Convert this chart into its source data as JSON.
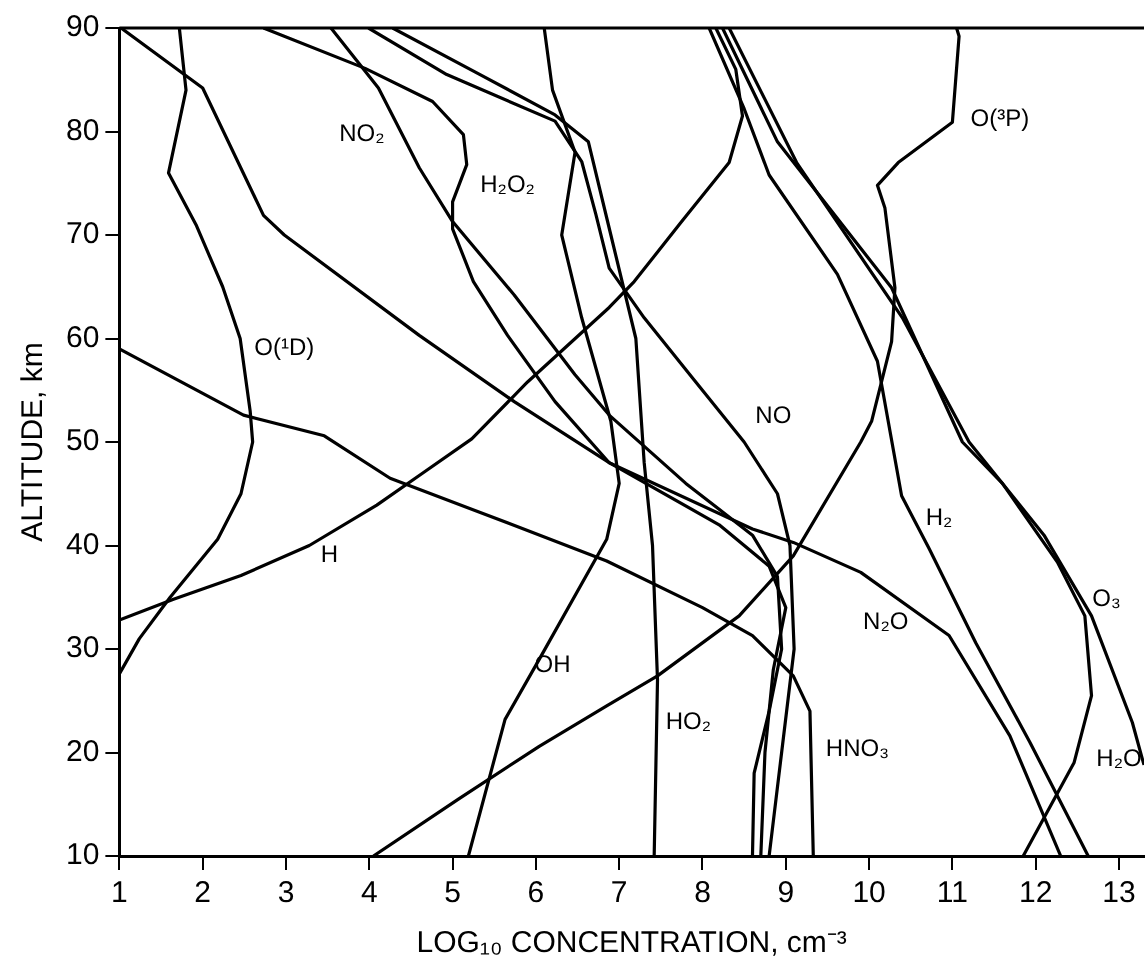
{
  "chart_data": {
    "type": "line",
    "xlabel": "LOG₁₀ CONCENTRATION, cm⁻³",
    "ylabel": "ALTITUDE, km",
    "xlim": [
      1,
      13.3
    ],
    "ylim": [
      10,
      90
    ],
    "xticks": [
      1,
      2,
      3,
      4,
      5,
      6,
      7,
      8,
      9,
      10,
      11,
      12,
      13
    ],
    "yticks": [
      10,
      20,
      30,
      40,
      50,
      60,
      70,
      80,
      90
    ],
    "grid": false,
    "legend": false,
    "marker": "none",
    "line_style": "solid",
    "series": [
      {
        "name": "O(¹D)",
        "color": "#000000",
        "x": [
          1,
          1.24,
          1.61,
          2.18,
          2.46,
          2.6,
          2.57,
          2.45,
          2.24,
          1.92,
          1.59,
          1.8,
          1.72
        ],
        "values": [
          27.6,
          31,
          35,
          40.6,
          45,
          50,
          53,
          60,
          65,
          71,
          76,
          84,
          90
        ]
      },
      {
        "name": "H",
        "color": "#000000",
        "x": [
          1,
          1.65,
          2.46,
          3.28,
          4.09,
          4.66,
          5.23,
          5.9,
          6.88,
          7.18,
          7.75,
          8.32,
          8.48,
          8.4,
          8.16
        ],
        "values": [
          32.8,
          34.8,
          37.1,
          40,
          43.9,
          47.1,
          50.3,
          55.8,
          63,
          65.5,
          71.3,
          77,
          81.5,
          86,
          90
        ]
      },
      {
        "name": "O(³P)",
        "color": "#000000",
        "x": [
          4.05,
          5.07,
          6.04,
          6.85,
          7.46,
          8.44,
          9.09,
          9.9,
          10.03,
          10.27,
          10.31,
          10.19,
          10.1,
          10.35,
          11,
          11.08,
          11.05
        ],
        "values": [
          10,
          15.5,
          20.6,
          24.5,
          27.4,
          33.2,
          39,
          50,
          52,
          59.7,
          64.9,
          72.6,
          74.8,
          77,
          80.9,
          89.2,
          90
        ]
      },
      {
        "name": "OH",
        "color": "#000000",
        "x": [
          5.19,
          5.63,
          6.04,
          6.85,
          7,
          6.9,
          6.55,
          6.31,
          6.47,
          6.2,
          6.1
        ],
        "values": [
          10,
          23.2,
          29,
          40.6,
          46,
          52,
          62,
          70,
          78,
          84,
          90
        ]
      },
      {
        "name": "N₂O",
        "color": "#000000",
        "x": [
          1.02,
          2,
          2.73,
          2.98,
          4.6,
          5.74,
          6.88,
          8.6,
          9.09,
          9.9,
          10.96,
          11.69,
          12.3
        ],
        "values": [
          90,
          84.2,
          71.9,
          70,
          60.3,
          53.9,
          48,
          41.6,
          40.3,
          37.4,
          31.3,
          21.6,
          10
        ]
      },
      {
        "name": "HNO₃",
        "color": "#000000",
        "x": [
          1,
          2.49,
          3.46,
          4.25,
          5.72,
          6.85,
          8,
          8.6,
          9.09,
          9.29,
          9.33
        ],
        "values": [
          59,
          52.6,
          50.6,
          46.5,
          42,
          38.5,
          34,
          31.3,
          27.4,
          24,
          10
        ]
      },
      {
        "name": "NO₂",
        "color": "#000000",
        "x": [
          3.54,
          4.11,
          4.6,
          5,
          5.74,
          6.47,
          6.88,
          7.8,
          8.6,
          8.9,
          8.95,
          8.8,
          8.62,
          8.6
        ],
        "values": [
          90,
          84.2,
          76.5,
          71.3,
          64.2,
          56.5,
          52.6,
          46,
          41,
          37,
          30,
          24,
          18,
          10
        ]
      },
      {
        "name": "H₂O₂",
        "color": "#000000",
        "x": [
          2.73,
          3.95,
          4.76,
          5.13,
          5.17,
          5,
          5,
          5.25,
          5.66,
          6.23,
          6.88,
          8.2,
          8.8,
          9,
          8.85,
          8.75,
          8.7
        ],
        "values": [
          90,
          86.1,
          82.9,
          79.7,
          76.8,
          73.2,
          70.6,
          65.5,
          60.3,
          53.9,
          48,
          42,
          38,
          34,
          28,
          20,
          10
        ]
      },
      {
        "name": "NO",
        "color": "#000000",
        "x": [
          3.99,
          4.93,
          6.23,
          6.55,
          6.72,
          6.88,
          7.3,
          7.9,
          8.5,
          8.9,
          9.05,
          9.1,
          8.95,
          8.8
        ],
        "values": [
          90,
          85.5,
          81,
          77.1,
          72,
          66.8,
          62,
          56,
          50,
          45,
          40,
          30,
          20,
          10
        ]
      },
      {
        "name": "HO₂",
        "color": "#000000",
        "x": [
          4.28,
          5.33,
          6.23,
          6.63,
          6.9,
          7.2,
          7.3,
          7.4,
          7.46,
          7.42
        ],
        "values": [
          90,
          85.5,
          81.6,
          79,
          70,
          60,
          48,
          40,
          27,
          10
        ]
      },
      {
        "name": "H₂",
        "color": "#000000",
        "x": [
          8.08,
          8.5,
          8.8,
          9.62,
          10.1,
          10.39,
          10.72,
          11.28,
          11.93,
          12.63
        ],
        "values": [
          90,
          82.2,
          75.8,
          66.2,
          57.8,
          44.8,
          39.7,
          30.6,
          21,
          10
        ]
      },
      {
        "name": "O₃",
        "color": "#000000",
        "x": [
          8.24,
          8.9,
          10.27,
          11.12,
          11.6,
          12.26,
          12.59,
          12.67,
          12.46,
          11.85
        ],
        "values": [
          90,
          79,
          64.9,
          50,
          46,
          38.4,
          33.2,
          25.5,
          19,
          10
        ]
      },
      {
        "name": "H₂O",
        "color": "#000000",
        "x": [
          8.32,
          9.13,
          10.4,
          11.2,
          12.1,
          12.67,
          13.16,
          13.3
        ],
        "values": [
          90,
          77,
          62,
          50,
          41,
          33.2,
          22.9,
          18.8
        ]
      }
    ]
  }
}
